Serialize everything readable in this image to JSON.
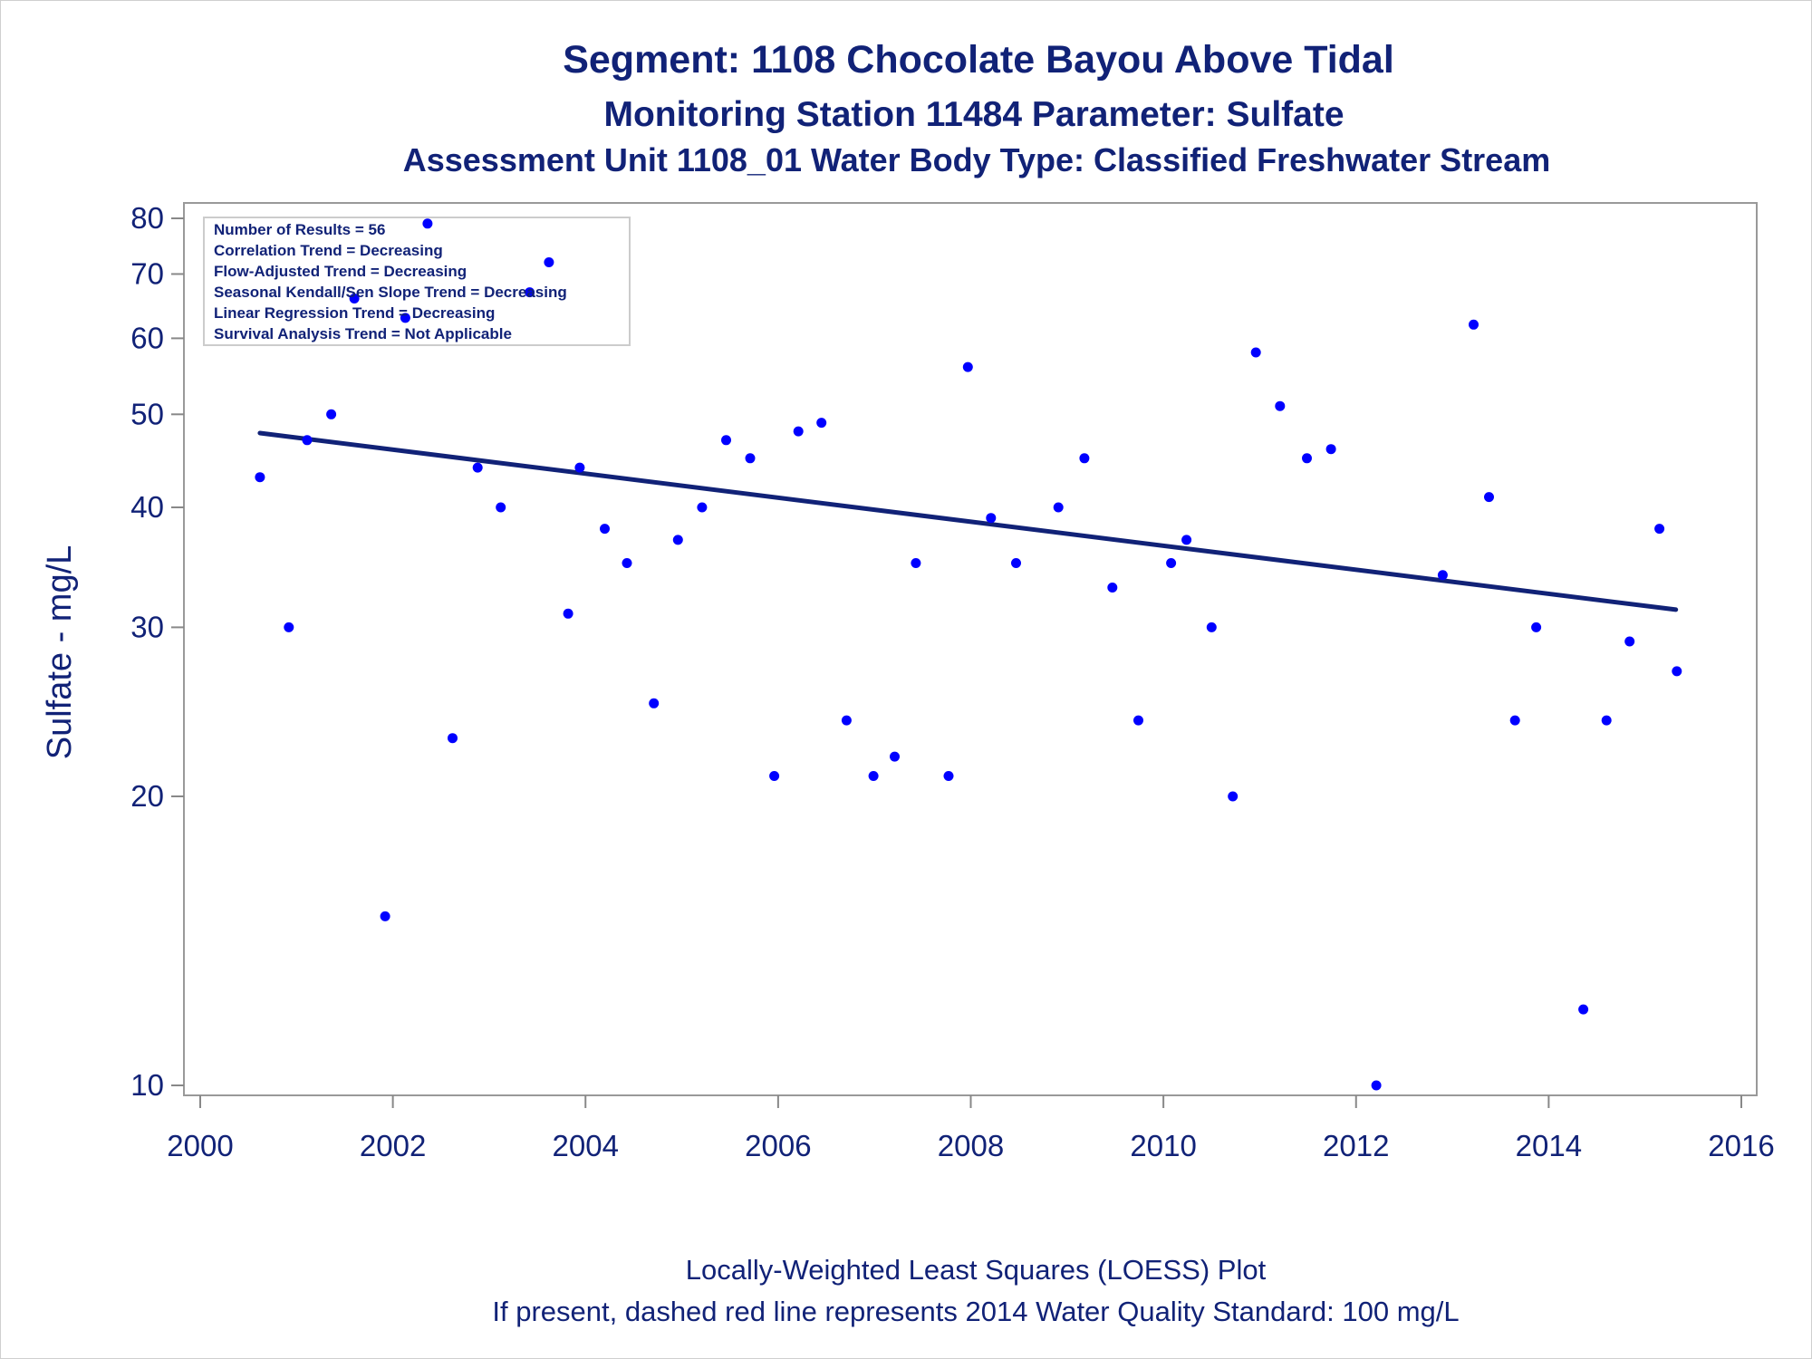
{
  "chart_data": {
    "type": "scatter",
    "title": "Segment: 1108  Chocolate Bayou Above Tidal",
    "subtitle": "Monitoring Station 11484 Parameter: Sulfate",
    "subtitle2": "Assessment Unit 1108_01   Water Body Type: Classified Freshwater Stream",
    "xlabel": "",
    "ylabel": "Sulfate - mg/L",
    "xlim": [
      2000,
      2016
    ],
    "ylim": [
      10,
      80
    ],
    "yscale": "log",
    "xticks": [
      2000,
      2002,
      2004,
      2006,
      2008,
      2010,
      2012,
      2014,
      2016
    ],
    "yticks": [
      10,
      20,
      30,
      40,
      50,
      60,
      70,
      80
    ],
    "grid": false,
    "color": "#0000ff",
    "line_color": "#112277",
    "inset_lines": [
      "Number of Results = 56",
      "Correlation Trend = Decreasing",
      "Flow-Adjusted Trend = Decreasing",
      "Seasonal Kendall/Sen Slope Trend = Decreasing",
      "Linear Regression Trend = Decreasing",
      "Survival Analysis Trend = Not Applicable"
    ],
    "inset_placement": "top-left",
    "footnotes": [
      "Locally-Weighted Least Squares (LOESS) Plot",
      "If present, dashed red line represents 2014 Water Quality Standard: 100   mg/L"
    ],
    "series": [
      {
        "type": "scatter",
        "points": [
          [
            2000.62,
            43
          ],
          [
            2000.92,
            30
          ],
          [
            2001.11,
            47
          ],
          [
            2001.36,
            50
          ],
          [
            2001.6,
            66
          ],
          [
            2001.92,
            15
          ],
          [
            2002.13,
            63
          ],
          [
            2002.36,
            79
          ],
          [
            2002.62,
            23
          ],
          [
            2002.88,
            44
          ],
          [
            2003.12,
            40
          ],
          [
            2003.42,
            67
          ],
          [
            2003.62,
            72
          ],
          [
            2003.82,
            31
          ],
          [
            2003.94,
            44
          ],
          [
            2004.2,
            38
          ],
          [
            2004.43,
            35
          ],
          [
            2004.71,
            25
          ],
          [
            2004.96,
            37
          ],
          [
            2005.21,
            40
          ],
          [
            2005.46,
            47
          ],
          [
            2005.71,
            45
          ],
          [
            2005.96,
            21
          ],
          [
            2006.21,
            48
          ],
          [
            2006.45,
            49
          ],
          [
            2006.71,
            24
          ],
          [
            2006.99,
            21
          ],
          [
            2007.21,
            22
          ],
          [
            2007.43,
            35
          ],
          [
            2007.77,
            21
          ],
          [
            2007.97,
            56
          ],
          [
            2008.21,
            39
          ],
          [
            2008.47,
            35
          ],
          [
            2008.91,
            40
          ],
          [
            2009.18,
            45
          ],
          [
            2009.47,
            33
          ],
          [
            2009.74,
            24
          ],
          [
            2010.08,
            35
          ],
          [
            2010.24,
            37
          ],
          [
            2010.5,
            30
          ],
          [
            2010.72,
            20
          ],
          [
            2010.96,
            58
          ],
          [
            2011.21,
            51
          ],
          [
            2011.49,
            45
          ],
          [
            2011.74,
            46
          ],
          [
            2012.21,
            10
          ],
          [
            2012.9,
            34
          ],
          [
            2013.22,
            62
          ],
          [
            2013.38,
            41
          ],
          [
            2013.65,
            24
          ],
          [
            2013.87,
            30
          ],
          [
            2014.36,
            12
          ],
          [
            2014.6,
            24
          ],
          [
            2014.84,
            29
          ],
          [
            2015.15,
            38
          ],
          [
            2015.33,
            27
          ]
        ]
      },
      {
        "type": "line",
        "points": [
          [
            2000.62,
            47.8
          ],
          [
            2015.32,
            31.3
          ]
        ]
      }
    ]
  }
}
